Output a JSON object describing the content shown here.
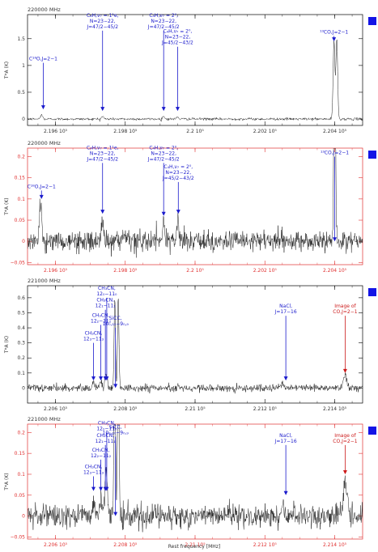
{
  "xlabel": "Rest frequency [MHz]",
  "chart_data": [
    {
      "type": "line",
      "panel": 1,
      "freq_label": "220000 MHz",
      "ylabel": "T*A (K)",
      "xlim": [
        219520,
        220480
      ],
      "ylim": [
        -0.12,
        1.95
      ],
      "x_ticks": [
        219600,
        219800,
        220000,
        220200,
        220400
      ],
      "x_tick_labels": [
        "2.196 10⁵",
        "2.198 10⁵",
        "2.2 10⁵",
        "2.202 10⁵",
        "2.204 10⁵"
      ],
      "y_ticks": [
        0,
        0.5,
        1,
        1.5
      ],
      "y_tick_labels": [
        "0",
        "0.5",
        "1",
        "1.5"
      ],
      "frame_color": "#000000",
      "peaks": [
        {
          "x": 219560,
          "h": 0.08,
          "w": 3
        },
        {
          "x": 219735,
          "h": 0.05,
          "w": 3
        },
        {
          "x": 219910,
          "h": 0.05,
          "w": 3
        },
        {
          "x": 219950,
          "h": 0.04,
          "w": 3
        },
        {
          "x": 220398,
          "h": 1.45,
          "w": 2.5
        },
        {
          "x": 220406,
          "h": 1.5,
          "w": 2.5
        }
      ],
      "noise_rms": 0.012,
      "annotations": [
        {
          "text": [
            "C¹⁸O,J=2−1"
          ],
          "x": 219565,
          "y_top": 1.05,
          "y_tip": 0.18,
          "color": "#1a1acc"
        },
        {
          "text": [
            "C₄H,ν₇ = 1¹e,",
            "N=23−22,",
            "J=47/2−45/2"
          ],
          "x": 219735,
          "y_top": 1.65,
          "y_tip": 0.15,
          "color": "#1a1acc"
        },
        {
          "text": [
            "C₄H,ν₇ = 2⁰,",
            "N=23−22,",
            "J=47/2−45/2"
          ],
          "x": 219910,
          "y_top": 1.65,
          "y_tip": 0.15,
          "color": "#1a1acc"
        },
        {
          "text": [
            "C₄H,ν₇ = 2⁰,",
            "N=23−22,",
            "J=45/2−43/2"
          ],
          "x": 219950,
          "y_top": 1.35,
          "y_tip": 0.15,
          "color": "#1a1acc"
        },
        {
          "text": [
            "¹³CO,J=2−1"
          ],
          "x": 220398,
          "y_top": 1.55,
          "y_tip": 1.45,
          "color": "#1a1acc"
        }
      ]
    },
    {
      "type": "line",
      "panel": 2,
      "freq_label": "220000 MHz",
      "ylabel": "T*A (K)",
      "xlim": [
        219520,
        220480
      ],
      "ylim": [
        -0.055,
        0.22
      ],
      "x_ticks": [
        219600,
        219800,
        220000,
        220200,
        220400
      ],
      "x_tick_labels": [
        "2.196 10⁵",
        "2.198 10⁵",
        "2.2 10⁵",
        "2.202 10⁵",
        "2.204 10⁵"
      ],
      "y_ticks": [
        -0.05,
        0,
        0.05,
        0.1,
        0.15,
        0.2
      ],
      "y_tick_labels": [
        "−0.05",
        "0",
        "0.05",
        "0.1",
        "0.15",
        "0.2"
      ],
      "frame_color": "#e03030",
      "peaks": [
        {
          "x": 219558,
          "h": 0.09,
          "w": 3
        },
        {
          "x": 219735,
          "h": 0.055,
          "w": 3
        },
        {
          "x": 219910,
          "h": 0.05,
          "w": 3
        },
        {
          "x": 219950,
          "h": 0.055,
          "w": 3
        },
        {
          "x": 220400,
          "h": 0.5,
          "w": 2.5
        }
      ],
      "noise_rms": 0.012,
      "annotations": [
        {
          "text": [
            "C¹⁸O,J=2−1"
          ],
          "x": 219560,
          "y_top": 0.12,
          "y_tip": 0.1,
          "color": "#1a1acc"
        },
        {
          "text": [
            "C₄H,ν₇ = 1¹e,",
            "N=23−22,",
            "J=47/2−45/2"
          ],
          "x": 219735,
          "y_top": 0.185,
          "y_tip": 0.065,
          "color": "#1a1acc"
        },
        {
          "text": [
            "C₄H,ν₇ = 2⁰,",
            "N=23−22,",
            "J=47/2−45/2"
          ],
          "x": 219910,
          "y_top": 0.185,
          "y_tip": 0.06,
          "color": "#1a1acc"
        },
        {
          "text": [
            "C₄H,ν₇ = 2⁰,",
            "N=23−22,",
            "J=45/2−43/2"
          ],
          "x": 219952,
          "y_top": 0.14,
          "y_tip": 0.065,
          "color": "#1a1acc"
        },
        {
          "text": [
            "¹³CO,J=2−1"
          ],
          "x": 220400,
          "y_top": 0.2,
          "y_tip": 0.0,
          "color": "#1a1acc"
        }
      ]
    },
    {
      "type": "line",
      "panel": 3,
      "freq_label": "221000 MHz",
      "ylabel": "T*A (K)",
      "xlim": [
        220520,
        221480
      ],
      "ylim": [
        -0.1,
        0.68
      ],
      "x_ticks": [
        220600,
        220800,
        221000,
        221200,
        221400
      ],
      "x_tick_labels": [
        "2.206 10⁵",
        "2.208 10⁵",
        "2.21 10⁵",
        "2.212 10⁵",
        "2.214 10⁵"
      ],
      "y_ticks": [
        0,
        0.1,
        0.2,
        0.3,
        0.4,
        0.5,
        0.6
      ],
      "y_tick_labels": [
        "0",
        "0.1",
        "0.2",
        "0.3",
        "0.4",
        "0.5",
        "0.6"
      ],
      "frame_color": "#000000",
      "peaks": [
        {
          "x": 220709,
          "h": 0.04,
          "w": 3
        },
        {
          "x": 220730,
          "h": 0.05,
          "w": 3
        },
        {
          "x": 220743,
          "h": 0.06,
          "w": 3
        },
        {
          "x": 220747,
          "h": 0.06,
          "w": 3
        },
        {
          "x": 220770,
          "h": 0.6,
          "w": 2
        },
        {
          "x": 220780,
          "h": 0.6,
          "w": 2
        },
        {
          "x": 221250,
          "h": 0.03,
          "w": 3
        },
        {
          "x": 221430,
          "h": 0.08,
          "w": 5
        }
      ],
      "noise_rms": 0.012,
      "annotations": [
        {
          "text": [
            "CH₃CN,",
            "12₀−11₀"
          ],
          "x": 220747,
          "y_top": 0.6,
          "y_tip": 0.05,
          "color": "#1a1acc"
        },
        {
          "text": [
            "CH₃CN,",
            "12₁−11₁"
          ],
          "x": 220743,
          "y_top": 0.52,
          "y_tip": 0.05,
          "color": "#1a1acc"
        },
        {
          "text": [
            "CH₃CN,",
            "12₂−11₂"
          ],
          "x": 220730,
          "y_top": 0.42,
          "y_tip": 0.05,
          "color": "#1a1acc"
        },
        {
          "text": [
            "CH₃CN,",
            "12₃−11₃"
          ],
          "x": 220709,
          "y_top": 0.3,
          "y_tip": 0.05,
          "color": "#1a1acc"
        },
        {
          "text": [
            "SiCC,",
            "10₀,₁₀−9₀,₉"
          ],
          "x": 220772,
          "y_top": 0.4,
          "y_tip": 0.0,
          "color": "#1a1acc"
        },
        {
          "text": [
            "NaCl,",
            "J=17−16"
          ],
          "x": 221260,
          "y_top": 0.48,
          "y_tip": 0.05,
          "color": "#1a1acc"
        },
        {
          "text": [
            "Image of",
            "CO,J=2−1"
          ],
          "x": 221430,
          "y_top": 0.48,
          "y_tip": 0.1,
          "color": "#cc1a1a"
        }
      ]
    },
    {
      "type": "line",
      "panel": 4,
      "freq_label": "221000 MHz",
      "ylabel": "T*A (K)",
      "xlim": [
        220520,
        221480
      ],
      "ylim": [
        -0.055,
        0.22
      ],
      "x_ticks": [
        220600,
        220800,
        221000,
        221200,
        221400
      ],
      "x_tick_labels": [
        "2.206 10⁵",
        "2.208 10⁵",
        "2.21 10⁵",
        "2.212 10⁵",
        "2.214 10⁵"
      ],
      "y_ticks": [
        -0.05,
        0,
        0.05,
        0.1,
        0.15,
        0.2
      ],
      "y_tick_labels": [
        "−0.05",
        "0",
        "0.05",
        "0.1",
        "0.15",
        "0.2"
      ],
      "frame_color": "#e03030",
      "peaks": [
        {
          "x": 220709,
          "h": 0.04,
          "w": 3
        },
        {
          "x": 220730,
          "h": 0.05,
          "w": 3
        },
        {
          "x": 220743,
          "h": 0.065,
          "w": 3
        },
        {
          "x": 220747,
          "h": 0.06,
          "w": 3
        },
        {
          "x": 220770,
          "h": 0.5,
          "w": 2
        },
        {
          "x": 220780,
          "h": 0.5,
          "w": 2
        },
        {
          "x": 221250,
          "h": 0.03,
          "w": 3
        },
        {
          "x": 221430,
          "h": 0.085,
          "w": 5
        }
      ],
      "noise_rms": 0.014,
      "annotations": [
        {
          "text": [
            "CH₃CN,",
            "12₀−11₀"
          ],
          "x": 220747,
          "y_top": 0.2,
          "y_tip": 0.06,
          "color": "#1a1acc"
        },
        {
          "text": [
            "CH₃CN,",
            "12₁−11₁"
          ],
          "x": 220743,
          "y_top": 0.17,
          "y_tip": 0.06,
          "color": "#1a1acc"
        },
        {
          "text": [
            "CH₃CN,",
            "12₂−11₂"
          ],
          "x": 220730,
          "y_top": 0.135,
          "y_tip": 0.06,
          "color": "#1a1acc"
        },
        {
          "text": [
            "CH₃CN,",
            "12₃−11₃"
          ],
          "x": 220709,
          "y_top": 0.095,
          "y_tip": 0.06,
          "color": "#1a1acc"
        },
        {
          "text": [
            "SiCC,",
            "10₀,₁₀−9₀,₉"
          ],
          "x": 220772,
          "y_top": 0.19,
          "y_tip": 0.0,
          "color": "#1a1acc"
        },
        {
          "text": [
            "NaCl,",
            "J=17−16"
          ],
          "x": 221260,
          "y_top": 0.17,
          "y_tip": 0.05,
          "color": "#1a1acc"
        },
        {
          "text": [
            "Image of",
            "CO,J=2−1"
          ],
          "x": 221430,
          "y_top": 0.17,
          "y_tip": 0.1,
          "color": "#cc1a1a"
        }
      ]
    }
  ],
  "colors": {
    "line_text_blue": "#1a1acc",
    "image_red": "#cc1a1a",
    "legend_square": "#1414e6",
    "spectrum": "#222222"
  }
}
